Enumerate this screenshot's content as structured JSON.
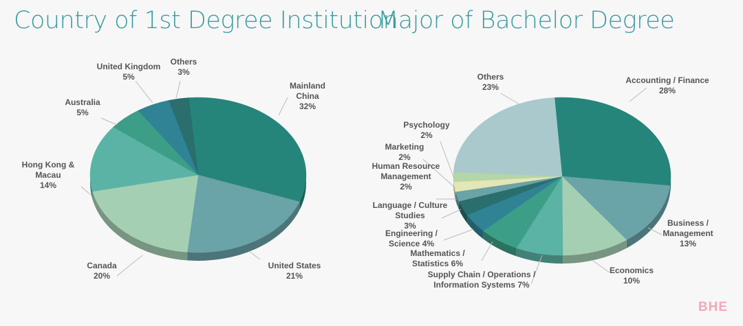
{
  "chart_data": [
    {
      "type": "pie",
      "title": "Country of 1st Degree Institution",
      "categories": [
        "Mainland China",
        "United States",
        "Canada",
        "Hong Kong & Macau",
        "Australia",
        "United Kingdom",
        "Others"
      ],
      "values": [
        32,
        21,
        20,
        14,
        5,
        5,
        3
      ],
      "value_labels": [
        "32%",
        "21%",
        "20%",
        "14%",
        "5%",
        "5%",
        "3%"
      ],
      "colors": [
        "#26857a",
        "#6aa3a8",
        "#a5cfb3",
        "#5bb3a6",
        "#3d9e87",
        "#2f8394",
        "#2a6e6e"
      ]
    },
    {
      "type": "pie",
      "title": "Major of Bachelor Degree",
      "categories": [
        "Accounting / Finance",
        "Business / Management",
        "Economics",
        "Supply Chain / Operations / Information Systems",
        "Mathematics / Statistics",
        "Engineering / Science",
        "Language / Culture Studies",
        "Human Resource Management",
        "Marketing",
        "Psychology",
        "Others"
      ],
      "values": [
        28,
        13,
        10,
        7,
        6,
        4,
        3,
        2,
        2,
        2,
        23
      ],
      "value_labels": [
        "28%",
        "13%",
        "10%",
        "7%",
        "6%",
        "4%",
        "3%",
        "2%",
        "2%",
        "2%",
        "23%"
      ],
      "colors": [
        "#26857a",
        "#6aa3a8",
        "#a5cfb3",
        "#5bb3a6",
        "#3d9e87",
        "#2f8394",
        "#2a6e6e",
        "#6aa3a8",
        "#e4e6b5",
        "#b5d6a6",
        "#a9c9cc"
      ]
    }
  ],
  "watermark": "BHE"
}
